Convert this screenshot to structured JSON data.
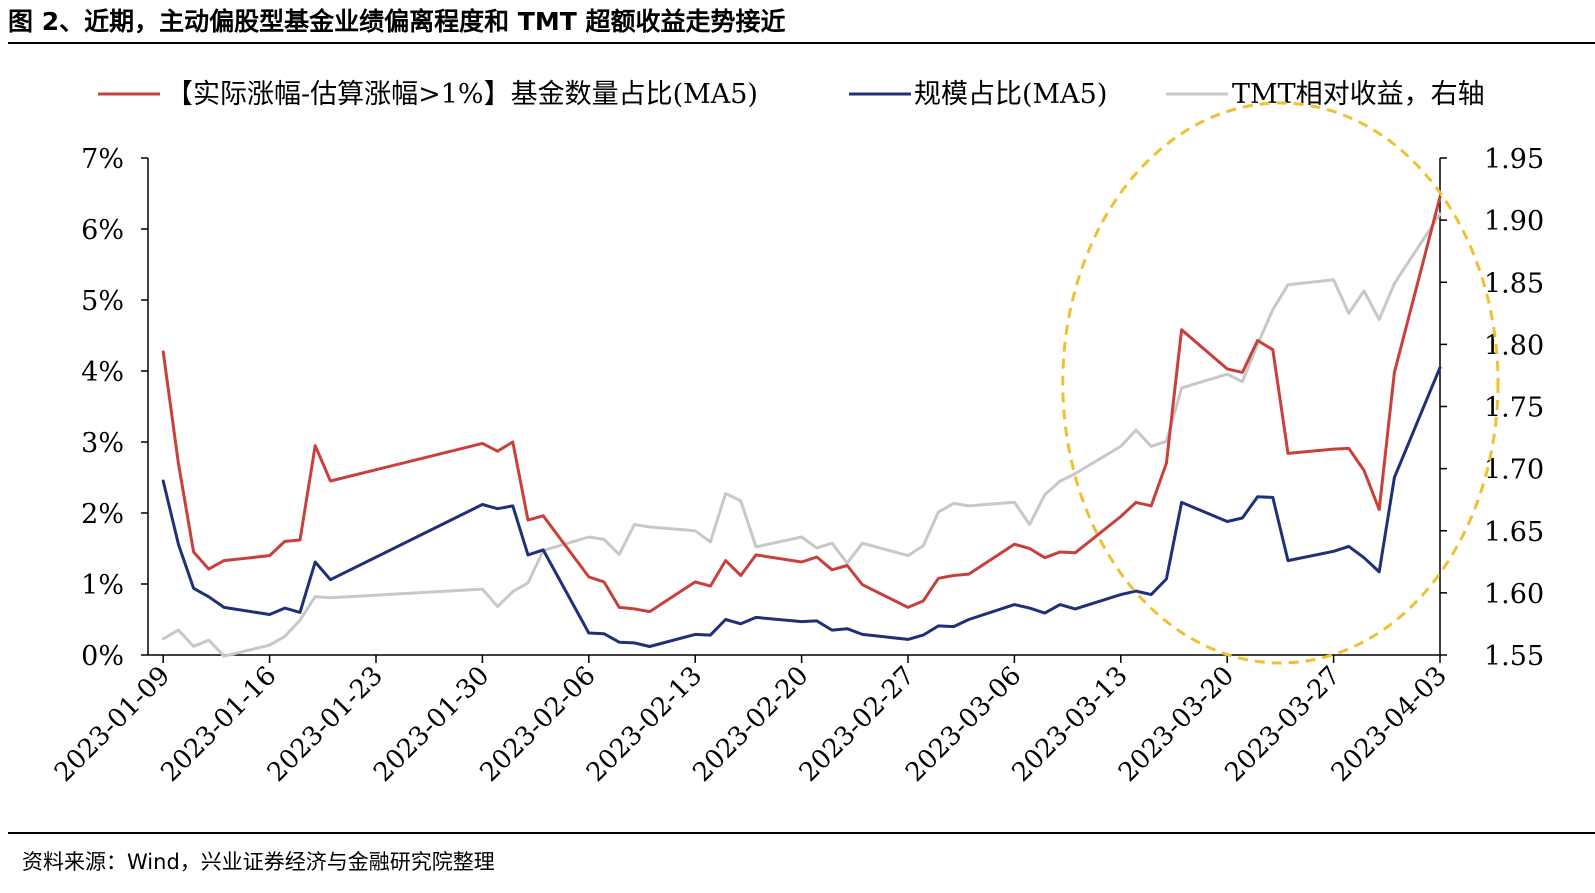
{
  "figure": {
    "title": "图 2、近期，主动偏股型基金业绩偏离程度和 TMT 超额收益走势接近",
    "source": "资料来源：Wind，兴业证券经济与金融研究院整理"
  },
  "colors": {
    "red_series": "#c9403a",
    "blue_series": "#1f2f78",
    "gray_series": "#c8c8c8",
    "highlight_ellipse": "#f0c030",
    "axis": "#000000"
  },
  "chart_data": {
    "type": "line",
    "title": "",
    "x_tick_labels": [
      "2023-01-09",
      "2023-01-16",
      "2023-01-23",
      "2023-01-30",
      "2023-02-06",
      "2023-02-13",
      "2023-02-20",
      "2023-02-27",
      "2023-03-06",
      "2023-03-13",
      "2023-03-20",
      "2023-03-27",
      "2023-04-03"
    ],
    "x_range": [
      "2023-01-08",
      "2023-04-03"
    ],
    "y_left": {
      "ticks": [
        "0%",
        "1%",
        "2%",
        "3%",
        "4%",
        "5%",
        "6%",
        "7%"
      ],
      "min": 0,
      "max": 7,
      "unit": "%"
    },
    "y_right": {
      "ticks": [
        "1.55",
        "1.60",
        "1.65",
        "1.70",
        "1.75",
        "1.80",
        "1.85",
        "1.90",
        "1.95"
      ],
      "min": 1.55,
      "max": 1.95
    },
    "grid": false,
    "legend_position": "top",
    "annotation": "dashed yellow ellipse highlighting 2023-03-13 to 2023-04-03",
    "series": [
      {
        "name": "【实际涨幅-估算涨幅>1%】基金数量占比(MA5)",
        "axis": "left",
        "points": [
          [
            "2023-01-09",
            4.27
          ],
          [
            "2023-01-10",
            2.7
          ],
          [
            "2023-01-11",
            1.45
          ],
          [
            "2023-01-12",
            1.21
          ],
          [
            "2023-01-13",
            1.33
          ],
          [
            "2023-01-16",
            1.4
          ],
          [
            "2023-01-17",
            1.6
          ],
          [
            "2023-01-18",
            1.62
          ],
          [
            "2023-01-19",
            2.95
          ],
          [
            "2023-01-20",
            2.45
          ],
          [
            "2023-01-30",
            2.98
          ],
          [
            "2023-01-31",
            2.87
          ],
          [
            "2023-02-01",
            3.0
          ],
          [
            "2023-02-02",
            1.9
          ],
          [
            "2023-02-03",
            1.96
          ],
          [
            "2023-02-06",
            1.1
          ],
          [
            "2023-02-07",
            1.03
          ],
          [
            "2023-02-08",
            0.67
          ],
          [
            "2023-02-09",
            0.65
          ],
          [
            "2023-02-10",
            0.61
          ],
          [
            "2023-02-13",
            1.03
          ],
          [
            "2023-02-14",
            0.97
          ],
          [
            "2023-02-15",
            1.33
          ],
          [
            "2023-02-16",
            1.12
          ],
          [
            "2023-02-17",
            1.41
          ],
          [
            "2023-02-20",
            1.31
          ],
          [
            "2023-02-21",
            1.38
          ],
          [
            "2023-02-22",
            1.2
          ],
          [
            "2023-02-23",
            1.26
          ],
          [
            "2023-02-24",
            0.99
          ],
          [
            "2023-02-27",
            0.67
          ],
          [
            "2023-02-28",
            0.76
          ],
          [
            "2023-03-01",
            1.08
          ],
          [
            "2023-03-02",
            1.12
          ],
          [
            "2023-03-03",
            1.14
          ],
          [
            "2023-03-06",
            1.56
          ],
          [
            "2023-03-07",
            1.5
          ],
          [
            "2023-03-08",
            1.37
          ],
          [
            "2023-03-09",
            1.45
          ],
          [
            "2023-03-10",
            1.44
          ],
          [
            "2023-03-13",
            1.95
          ],
          [
            "2023-03-14",
            2.15
          ],
          [
            "2023-03-15",
            2.1
          ],
          [
            "2023-03-16",
            2.7
          ],
          [
            "2023-03-17",
            4.58
          ],
          [
            "2023-03-20",
            4.03
          ],
          [
            "2023-03-21",
            3.98
          ],
          [
            "2023-03-22",
            4.43
          ],
          [
            "2023-03-23",
            4.3
          ],
          [
            "2023-03-24",
            2.84
          ],
          [
            "2023-03-27",
            2.9
          ],
          [
            "2023-03-28",
            2.91
          ],
          [
            "2023-03-29",
            2.6
          ],
          [
            "2023-03-30",
            2.05
          ],
          [
            "2023-03-31",
            3.98
          ],
          [
            "2023-04-03",
            6.45
          ]
        ]
      },
      {
        "name": "规模占比(MA5)",
        "axis": "left",
        "points": [
          [
            "2023-01-09",
            2.45
          ],
          [
            "2023-01-10",
            1.56
          ],
          [
            "2023-01-11",
            0.94
          ],
          [
            "2023-01-12",
            0.82
          ],
          [
            "2023-01-13",
            0.67
          ],
          [
            "2023-01-16",
            0.57
          ],
          [
            "2023-01-17",
            0.66
          ],
          [
            "2023-01-18",
            0.6
          ],
          [
            "2023-01-19",
            1.31
          ],
          [
            "2023-01-20",
            1.06
          ],
          [
            "2023-01-30",
            2.12
          ],
          [
            "2023-01-31",
            2.06
          ],
          [
            "2023-02-01",
            2.1
          ],
          [
            "2023-02-02",
            1.41
          ],
          [
            "2023-02-03",
            1.48
          ],
          [
            "2023-02-06",
            0.31
          ],
          [
            "2023-02-07",
            0.3
          ],
          [
            "2023-02-08",
            0.18
          ],
          [
            "2023-02-09",
            0.17
          ],
          [
            "2023-02-10",
            0.12
          ],
          [
            "2023-02-13",
            0.29
          ],
          [
            "2023-02-14",
            0.28
          ],
          [
            "2023-02-15",
            0.5
          ],
          [
            "2023-02-16",
            0.44
          ],
          [
            "2023-02-17",
            0.53
          ],
          [
            "2023-02-20",
            0.47
          ],
          [
            "2023-02-21",
            0.48
          ],
          [
            "2023-02-22",
            0.35
          ],
          [
            "2023-02-23",
            0.37
          ],
          [
            "2023-02-24",
            0.29
          ],
          [
            "2023-02-27",
            0.22
          ],
          [
            "2023-02-28",
            0.28
          ],
          [
            "2023-03-01",
            0.41
          ],
          [
            "2023-03-02",
            0.4
          ],
          [
            "2023-03-03",
            0.5
          ],
          [
            "2023-03-06",
            0.71
          ],
          [
            "2023-03-07",
            0.66
          ],
          [
            "2023-03-08",
            0.59
          ],
          [
            "2023-03-09",
            0.71
          ],
          [
            "2023-03-10",
            0.65
          ],
          [
            "2023-03-13",
            0.85
          ],
          [
            "2023-03-14",
            0.9
          ],
          [
            "2023-03-15",
            0.85
          ],
          [
            "2023-03-16",
            1.07
          ],
          [
            "2023-03-17",
            2.15
          ],
          [
            "2023-03-20",
            1.88
          ],
          [
            "2023-03-21",
            1.93
          ],
          [
            "2023-03-22",
            2.23
          ],
          [
            "2023-03-23",
            2.22
          ],
          [
            "2023-03-24",
            1.33
          ],
          [
            "2023-03-27",
            1.46
          ],
          [
            "2023-03-28",
            1.53
          ],
          [
            "2023-03-29",
            1.37
          ],
          [
            "2023-03-30",
            1.17
          ],
          [
            "2023-03-31",
            2.5
          ],
          [
            "2023-04-03",
            4.05
          ]
        ]
      },
      {
        "name": "TMT相对收益，右轴",
        "axis": "right",
        "points": [
          [
            "2023-01-09",
            1.563
          ],
          [
            "2023-01-10",
            1.57
          ],
          [
            "2023-01-11",
            1.557
          ],
          [
            "2023-01-12",
            1.562
          ],
          [
            "2023-01-13",
            1.549
          ],
          [
            "2023-01-16",
            1.558
          ],
          [
            "2023-01-17",
            1.565
          ],
          [
            "2023-01-18",
            1.578
          ],
          [
            "2023-01-19",
            1.597
          ],
          [
            "2023-01-20",
            1.596
          ],
          [
            "2023-01-30",
            1.603
          ],
          [
            "2023-01-31",
            1.589
          ],
          [
            "2023-02-01",
            1.601
          ],
          [
            "2023-02-02",
            1.608
          ],
          [
            "2023-02-03",
            1.634
          ],
          [
            "2023-02-06",
            1.645
          ],
          [
            "2023-02-07",
            1.643
          ],
          [
            "2023-02-08",
            1.631
          ],
          [
            "2023-02-09",
            1.655
          ],
          [
            "2023-02-10",
            1.653
          ],
          [
            "2023-02-13",
            1.65
          ],
          [
            "2023-02-14",
            1.641
          ],
          [
            "2023-02-15",
            1.68
          ],
          [
            "2023-02-16",
            1.674
          ],
          [
            "2023-02-17",
            1.637
          ],
          [
            "2023-02-20",
            1.645
          ],
          [
            "2023-02-21",
            1.636
          ],
          [
            "2023-02-22",
            1.64
          ],
          [
            "2023-02-23",
            1.624
          ],
          [
            "2023-02-24",
            1.64
          ],
          [
            "2023-02-27",
            1.63
          ],
          [
            "2023-02-28",
            1.638
          ],
          [
            "2023-03-01",
            1.665
          ],
          [
            "2023-03-02",
            1.672
          ],
          [
            "2023-03-03",
            1.67
          ],
          [
            "2023-03-06",
            1.673
          ],
          [
            "2023-03-07",
            1.655
          ],
          [
            "2023-03-08",
            1.679
          ],
          [
            "2023-03-09",
            1.69
          ],
          [
            "2023-03-10",
            1.696
          ],
          [
            "2023-03-13",
            1.718
          ],
          [
            "2023-03-14",
            1.731
          ],
          [
            "2023-03-15",
            1.718
          ],
          [
            "2023-03-16",
            1.722
          ],
          [
            "2023-03-17",
            1.765
          ],
          [
            "2023-03-20",
            1.776
          ],
          [
            "2023-03-21",
            1.77
          ],
          [
            "2023-03-22",
            1.8
          ],
          [
            "2023-03-23",
            1.828
          ],
          [
            "2023-03-24",
            1.848
          ],
          [
            "2023-03-27",
            1.852
          ],
          [
            "2023-03-28",
            1.825
          ],
          [
            "2023-03-29",
            1.843
          ],
          [
            "2023-03-30",
            1.82
          ],
          [
            "2023-03-31",
            1.849
          ],
          [
            "2023-04-03",
            1.905
          ]
        ]
      }
    ]
  }
}
